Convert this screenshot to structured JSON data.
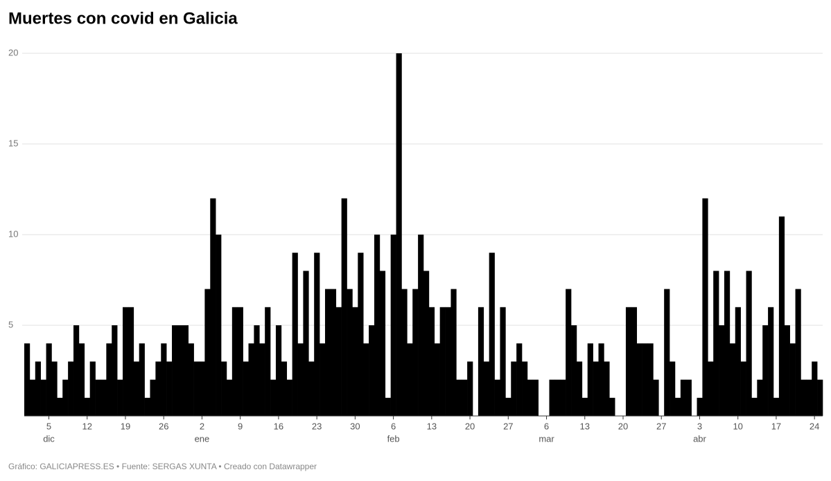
{
  "chart_data": {
    "type": "bar",
    "title": "Muertes con covid en Galicia",
    "footer": "Gráfico: GALICIAPRESS.ES • Fuente: SERGAS XUNTA • Creado con Datawrapper",
    "categories": [
      null,
      null,
      null,
      null,
      "5",
      null,
      null,
      null,
      null,
      null,
      null,
      "12",
      null,
      null,
      null,
      null,
      null,
      null,
      "19",
      null,
      null,
      null,
      null,
      null,
      null,
      "26",
      null,
      null,
      null,
      null,
      null,
      null,
      "2",
      null,
      null,
      null,
      null,
      null,
      null,
      "9",
      null,
      null,
      null,
      null,
      null,
      null,
      "16",
      null,
      null,
      null,
      null,
      null,
      null,
      "23",
      null,
      null,
      null,
      null,
      null,
      null,
      "30",
      null,
      null,
      null,
      null,
      null,
      null,
      "6",
      null,
      null,
      null,
      null,
      null,
      null,
      "13",
      null,
      null,
      null,
      null,
      null,
      null,
      "20",
      null,
      null,
      null,
      null,
      null,
      null,
      "27",
      null,
      null,
      null,
      null,
      null,
      null,
      "6",
      null,
      null,
      null,
      null,
      null,
      null,
      "13",
      null,
      null,
      null,
      null,
      null,
      null,
      "20",
      null,
      null,
      null,
      null,
      null,
      null,
      "27",
      null,
      null,
      null,
      null,
      null,
      null,
      "3",
      null,
      null,
      null,
      null,
      null,
      null,
      "10",
      null,
      null,
      null,
      null,
      null,
      null,
      "17",
      null,
      null,
      null,
      null,
      null,
      null,
      "24",
      null
    ],
    "month_labels": [
      "dic",
      "ene",
      "feb",
      "mar",
      "abr"
    ],
    "values": [
      4,
      2,
      3,
      2,
      4,
      3,
      1,
      2,
      3,
      5,
      4,
      1,
      3,
      2,
      2,
      4,
      5,
      2,
      6,
      6,
      3,
      4,
      1,
      2,
      3,
      4,
      3,
      5,
      5,
      5,
      4,
      3,
      3,
      7,
      12,
      10,
      3,
      2,
      6,
      6,
      3,
      4,
      5,
      4,
      6,
      2,
      5,
      3,
      2,
      9,
      4,
      8,
      3,
      9,
      4,
      7,
      7,
      6,
      12,
      7,
      6,
      9,
      4,
      5,
      10,
      8,
      1,
      10,
      20,
      7,
      4,
      7,
      10,
      8,
      6,
      4,
      6,
      6,
      7,
      2,
      2,
      3,
      0,
      6,
      3,
      9,
      2,
      6,
      1,
      3,
      4,
      3,
      2,
      2,
      0,
      0,
      2,
      2,
      2,
      7,
      5,
      3,
      1,
      4,
      3,
      4,
      3,
      1,
      0,
      0,
      6,
      6,
      4,
      4,
      4,
      2,
      0,
      7,
      3,
      1,
      2,
      2,
      0,
      1,
      12,
      3,
      8,
      5,
      8,
      4,
      6,
      3,
      8,
      1,
      2,
      5,
      6,
      1,
      11,
      5,
      4,
      7,
      2,
      2,
      3,
      2
    ],
    "color": "#000000",
    "ylim": [
      0,
      20
    ],
    "yticks": [
      5,
      10,
      15,
      20
    ],
    "grid": true
  }
}
